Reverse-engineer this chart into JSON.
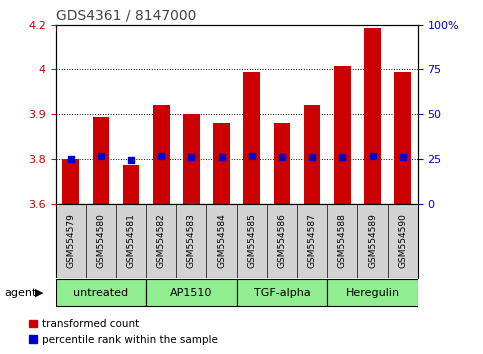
{
  "title": "GDS4361 / 8147000",
  "samples": [
    "GSM554579",
    "GSM554580",
    "GSM554581",
    "GSM554582",
    "GSM554583",
    "GSM554584",
    "GSM554585",
    "GSM554586",
    "GSM554587",
    "GSM554588",
    "GSM554589",
    "GSM554590"
  ],
  "red_values": [
    3.75,
    3.89,
    3.73,
    3.93,
    3.9,
    3.87,
    4.04,
    3.87,
    3.93,
    4.06,
    4.19,
    4.04
  ],
  "blue_values": [
    3.75,
    3.76,
    3.745,
    3.76,
    3.755,
    3.755,
    3.76,
    3.755,
    3.755,
    3.755,
    3.76,
    3.755
  ],
  "ylim_left": [
    3.6,
    4.2
  ],
  "ylim_right": [
    0,
    100
  ],
  "yticks_left": [
    3.6,
    3.75,
    3.9,
    4.05,
    4.2
  ],
  "yticks_right": [
    0,
    25,
    50,
    75,
    100
  ],
  "ytick_labels_right": [
    "0",
    "25",
    "50",
    "75",
    "100%"
  ],
  "gridlines": [
    3.75,
    3.9,
    4.05
  ],
  "groups": [
    {
      "label": "untreated",
      "start": 0,
      "end": 3,
      "color": "#90ee90"
    },
    {
      "label": "AP1510",
      "start": 3,
      "end": 6,
      "color": "#90ee90"
    },
    {
      "label": "TGF-alpha",
      "start": 6,
      "end": 9,
      "color": "#90ee90"
    },
    {
      "label": "Heregulin",
      "start": 9,
      "end": 12,
      "color": "#90ee90"
    }
  ],
  "bar_color": "#cc0000",
  "blue_color": "#0000cc",
  "bar_width": 0.55,
  "legend_red": "transformed count",
  "legend_blue": "percentile rank within the sample",
  "agent_label": "agent",
  "bg_color": "#ffffff",
  "spine_color": "#000000",
  "tick_color_left": "#cc0000",
  "tick_color_right": "#0000cc",
  "title_fontsize": 10,
  "sample_fontsize": 6.5,
  "group_fontsize": 8,
  "legend_fontsize": 7.5,
  "group_bg_color": "#d3d3d3"
}
